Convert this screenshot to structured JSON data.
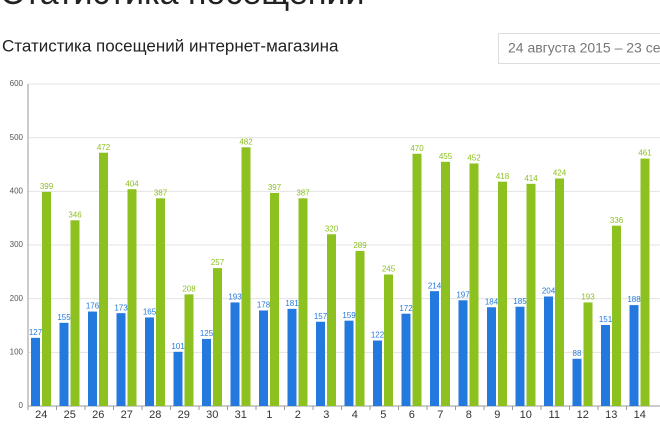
{
  "header": {
    "title": "Статистика посещений",
    "subtitle": "Статистика посещений интернет-магазина",
    "date_range": "24 августа 2015 – 23 се"
  },
  "chart_data": {
    "type": "bar",
    "categories": [
      "24",
      "25",
      "26",
      "27",
      "28",
      "29",
      "30",
      "31",
      "1",
      "2",
      "3",
      "4",
      "5",
      "6",
      "7",
      "8",
      "9",
      "10",
      "11",
      "12",
      "13",
      "14"
    ],
    "series": [
      {
        "color": "#2479df",
        "values": [
          127,
          155,
          176,
          173,
          165,
          101,
          125,
          193,
          178,
          181,
          157,
          159,
          122,
          172,
          214,
          197,
          184,
          185,
          204,
          88,
          151,
          188
        ]
      },
      {
        "color": "#8cc11f",
        "values": [
          399,
          346,
          472,
          404,
          387,
          208,
          257,
          482,
          397,
          387,
          320,
          289,
          245,
          470,
          455,
          452,
          418,
          414,
          424,
          193,
          336,
          461
        ]
      }
    ],
    "ylim": [
      0,
      600
    ],
    "yticks": [
      0,
      100,
      200,
      300,
      400,
      500,
      600
    ],
    "grid": true
  }
}
